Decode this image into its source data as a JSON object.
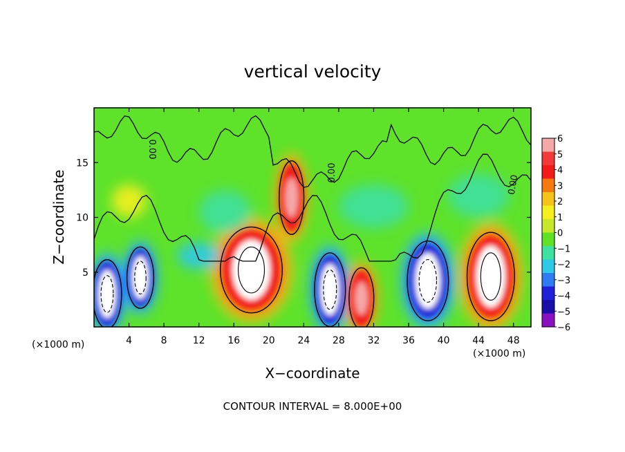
{
  "chart_data": {
    "type": "heatmap",
    "title": "vertical velocity",
    "xlabel": "X−coordinate",
    "ylabel": "Z−coordinate",
    "x_unit_left": "(×1000 m)",
    "x_unit_right": "(×1000 m)",
    "footer": "CONTOUR INTERVAL = 8.000E+00",
    "xlim": [
      0,
      50
    ],
    "ylim": [
      0,
      20
    ],
    "x_ticks": [
      "4",
      "8",
      "12",
      "16",
      "20",
      "24",
      "28",
      "32",
      "36",
      "40",
      "44",
      "48"
    ],
    "x_tick_values": [
      4,
      8,
      12,
      16,
      20,
      24,
      28,
      32,
      36,
      40,
      44,
      48
    ],
    "y_ticks": [
      "5",
      "10",
      "15"
    ],
    "y_tick_values": [
      5,
      10,
      15
    ],
    "colorbar": {
      "labels": [
        "6",
        "5",
        "4",
        "3",
        "2",
        "1",
        "0",
        "−1",
        "−2",
        "−3",
        "−4",
        "−5",
        "−6"
      ],
      "values": [
        6,
        5,
        4,
        3,
        2,
        1,
        0,
        -1,
        -2,
        -3,
        -4,
        -5,
        -6
      ],
      "colors": [
        "#f4a8a8",
        "#f23a3a",
        "#f21a1a",
        "#f47a10",
        "#f6c31a",
        "#f5ef20",
        "#c6e72a",
        "#5fe226",
        "#3fe0a0",
        "#2ec9e8",
        "#2f7cf2",
        "#2020d8",
        "#1a0ea8",
        "#8b10c0"
      ]
    },
    "contour_labels": [
      "0.00",
      "0.00",
      "0.00"
    ],
    "background_color": "#5ee22a",
    "features": [
      {
        "x": 1.5,
        "z": 3.0,
        "w": 2.8,
        "h": 5.6,
        "value": -6
      },
      {
        "x": 5.3,
        "z": 4.5,
        "w": 2.6,
        "h": 5.0,
        "value": -6
      },
      {
        "x": 18.0,
        "z": 5.2,
        "w": 6.0,
        "h": 7.0,
        "value": 6
      },
      {
        "x": 22.6,
        "z": 11.8,
        "w": 2.4,
        "h": 6.0,
        "value": 5
      },
      {
        "x": 27.0,
        "z": 3.4,
        "w": 3.0,
        "h": 6.0,
        "value": -6
      },
      {
        "x": 30.6,
        "z": 2.6,
        "w": 2.4,
        "h": 5.0,
        "value": 5
      },
      {
        "x": 38.2,
        "z": 4.2,
        "w": 4.0,
        "h": 6.5,
        "value": -6
      },
      {
        "x": 45.4,
        "z": 4.6,
        "w": 4.6,
        "h": 7.2,
        "value": 6
      },
      {
        "x": 12.0,
        "z": 6.5,
        "w": 5.0,
        "h": 2.5,
        "value": -3
      },
      {
        "x": 15.0,
        "z": 10.5,
        "w": 6.0,
        "h": 4.0,
        "value": -2
      },
      {
        "x": 32.0,
        "z": 11.0,
        "w": 8.0,
        "h": 4.0,
        "value": -2
      },
      {
        "x": 44.0,
        "z": 12.0,
        "w": 7.0,
        "h": 4.0,
        "value": -2
      },
      {
        "x": 4.0,
        "z": 11.5,
        "w": 4.0,
        "h": 3.0,
        "value": 1.5
      }
    ]
  }
}
